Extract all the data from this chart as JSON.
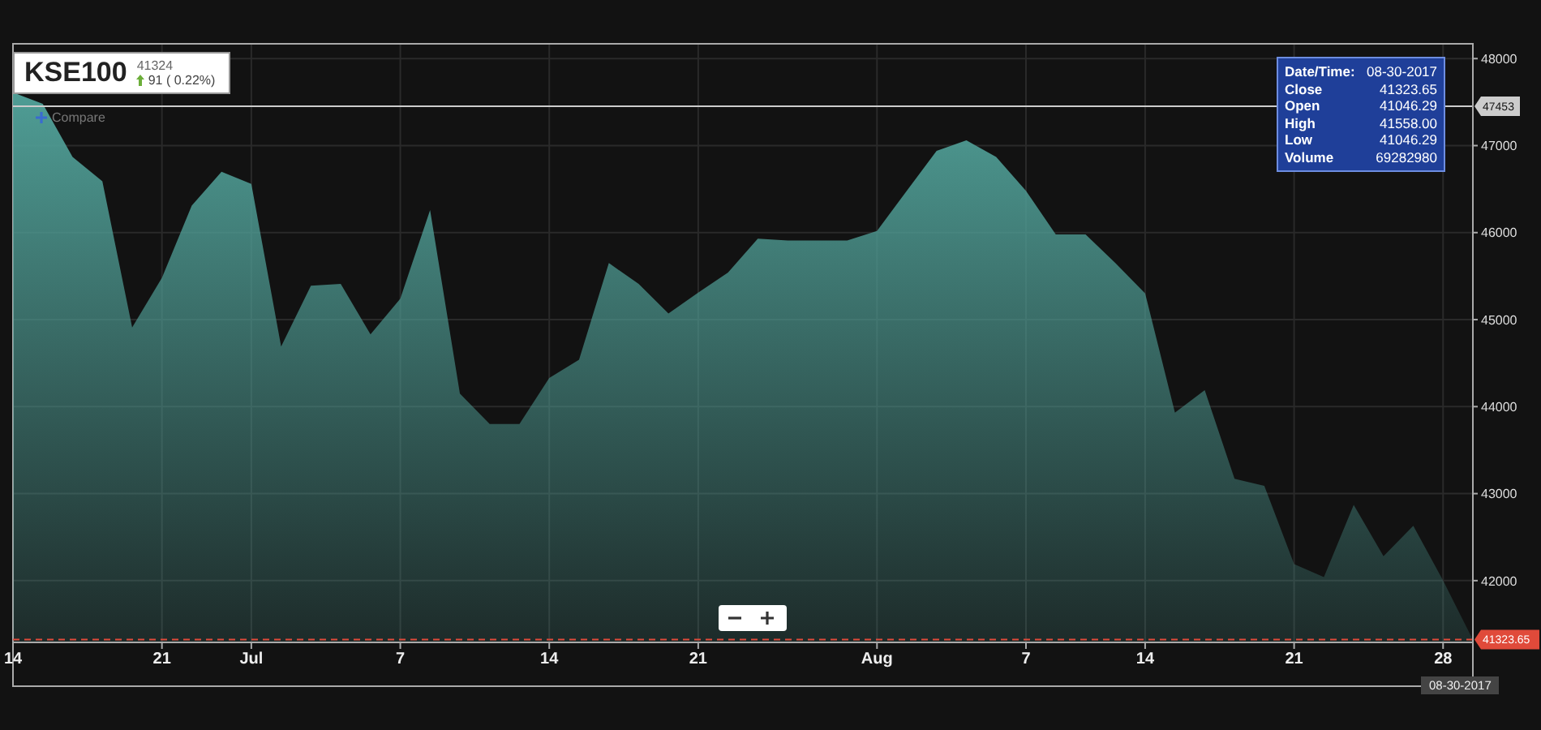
{
  "chart_data": {
    "type": "area",
    "title": "KSE100",
    "categories": [
      "14",
      null,
      null,
      null,
      null,
      "21",
      null,
      null,
      "Jul",
      null,
      null,
      null,
      null,
      "7",
      null,
      null,
      null,
      null,
      "14",
      null,
      null,
      null,
      null,
      "21",
      null,
      null,
      null,
      null,
      null,
      "Aug",
      null,
      null,
      null,
      null,
      "7",
      null,
      null,
      null,
      "14",
      null,
      null,
      null,
      null,
      "21",
      null,
      null,
      null,
      null,
      "28",
      null
    ],
    "series": [
      {
        "color": "#4f9d95",
        "values": [
          47610,
          47480,
          46870,
          46590,
          44910,
          45480,
          46310,
          46700,
          46560,
          44690,
          45390,
          45410,
          44830,
          45240,
          46260,
          44150,
          43800,
          43800,
          44330,
          44540,
          45650,
          45410,
          45070,
          45310,
          45540,
          45930,
          45910,
          45910,
          45910,
          46020,
          46480,
          46940,
          47060,
          46870,
          46480,
          45980,
          45980,
          45650,
          45300,
          43930,
          44190,
          43170,
          43090,
          42190,
          42040,
          42870,
          42280,
          42630,
          42000,
          41320
        ]
      }
    ],
    "ylim": [
      41290,
      48170
    ],
    "yticks": [
      42000,
      43000,
      44000,
      45000,
      46000,
      47000,
      48000
    ],
    "grid": true,
    "ref_lines": [
      {
        "axis": "y",
        "value": 47453,
        "label": "47453",
        "color": "#cccccc",
        "line_style": "solid"
      },
      {
        "axis": "y",
        "value": 41323.65,
        "label": "41323.65",
        "color": "#e04a3a",
        "line_style": "dashed"
      }
    ],
    "annotations": [
      "41324",
      "91 ( 0.22%)",
      "Compare",
      "Date/Time:",
      "08-30-2017",
      "Close",
      "41323.65",
      "Open",
      "41046.29",
      "High",
      "41558.00",
      "Low",
      "41046.29",
      "Volume",
      "69282980",
      "08-30-2017"
    ]
  }
}
